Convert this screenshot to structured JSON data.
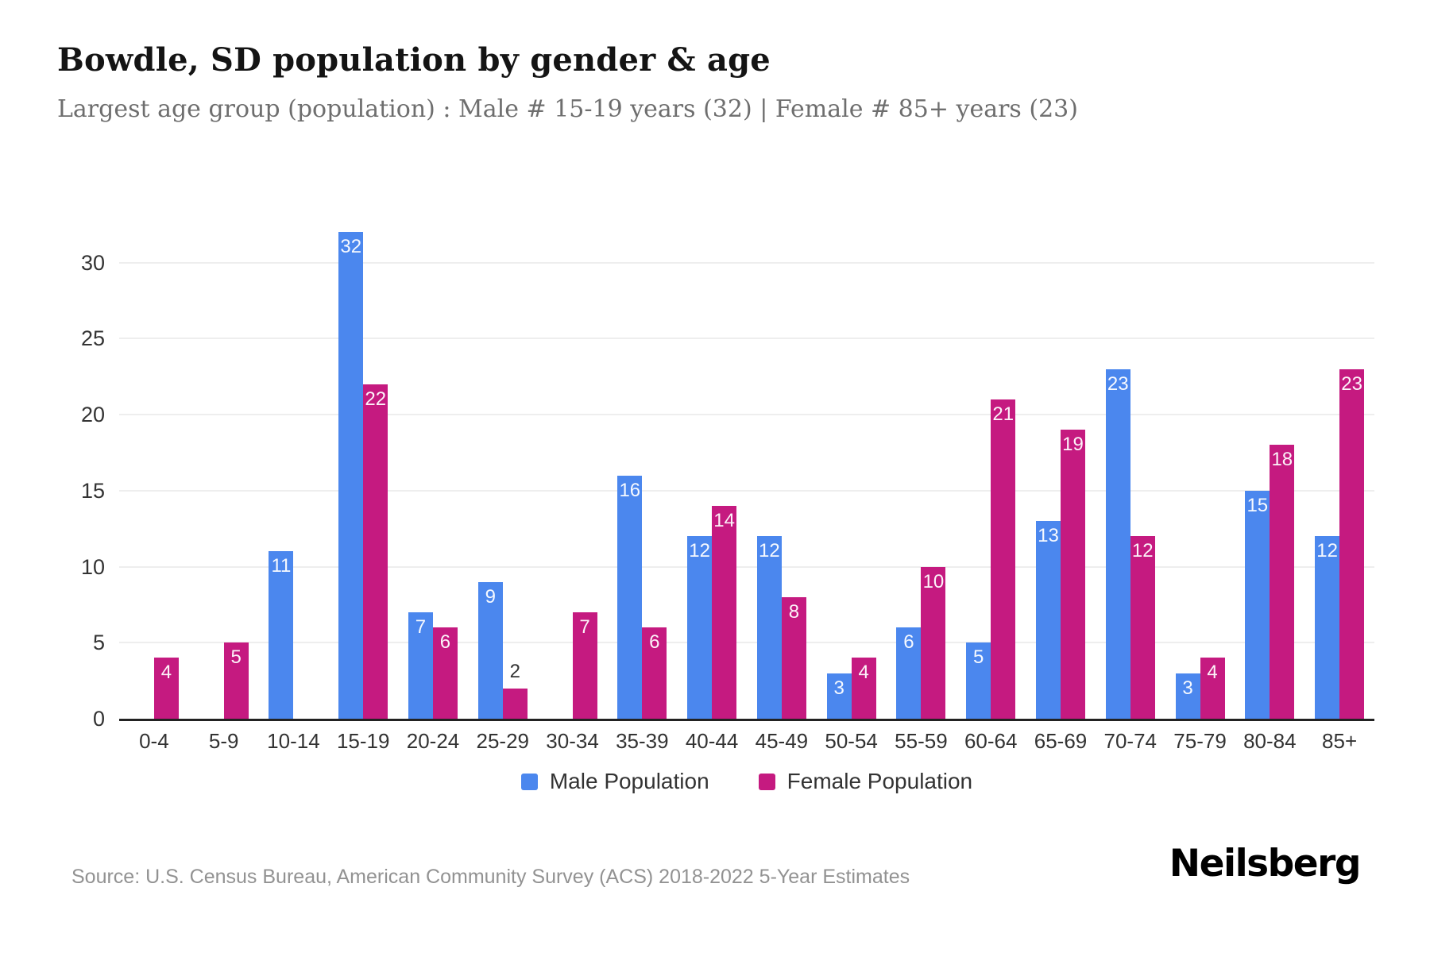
{
  "header": {
    "title": "Bowdle, SD population by gender & age",
    "subtitle": "Largest age group (population) : Male # 15-19 years (32) | Female # 85+ years (23)"
  },
  "chart_data": {
    "type": "bar",
    "title": "Bowdle, SD population by gender & age",
    "categories": [
      "0-4",
      "5-9",
      "10-14",
      "15-19",
      "20-24",
      "25-29",
      "30-34",
      "35-39",
      "40-44",
      "45-49",
      "50-54",
      "55-59",
      "60-64",
      "65-69",
      "70-74",
      "75-79",
      "80-84",
      "85+"
    ],
    "series": [
      {
        "name": "Male Population",
        "color": "#4b87ee",
        "values": [
          0,
          0,
          11,
          32,
          7,
          9,
          0,
          16,
          12,
          12,
          3,
          6,
          5,
          13,
          23,
          3,
          15,
          12
        ]
      },
      {
        "name": "Female Population",
        "color": "#c51a80",
        "values": [
          4,
          5,
          0,
          22,
          6,
          2,
          7,
          6,
          14,
          8,
          4,
          10,
          21,
          19,
          12,
          4,
          18,
          23
        ]
      }
    ],
    "xlabel": "",
    "ylabel": "",
    "yticks": [
      0,
      5,
      10,
      15,
      20,
      25,
      30
    ],
    "ylim": [
      0,
      34
    ],
    "grid": true,
    "legend_position": "bottom",
    "label_inside_color": "#ffffff",
    "label_outside_color": "#333333"
  },
  "footer": {
    "source": "Source: U.S. Census Bureau, American Community Survey (ACS) 2018-2022 5-Year Estimates",
    "brand": "Neilsberg"
  }
}
